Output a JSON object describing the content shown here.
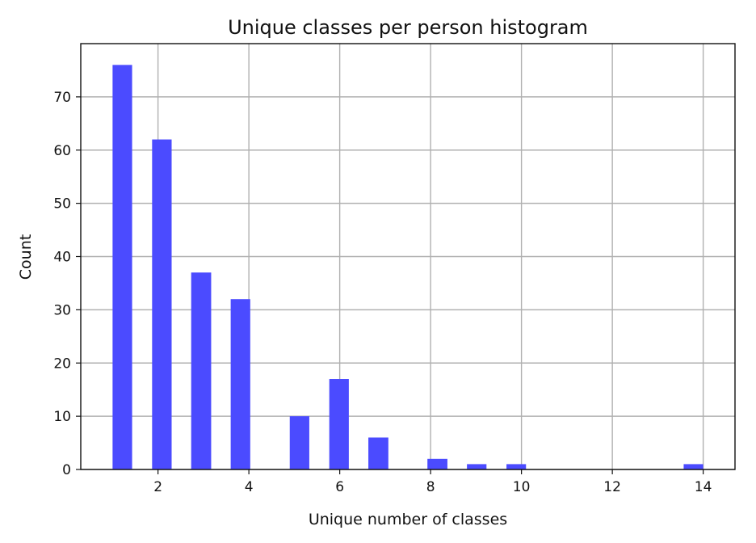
{
  "chart_data": {
    "type": "bar",
    "title": "Unique classes per person histogram",
    "xlabel": "Unique number of classes",
    "ylabel": "Count",
    "xlim": [
      0.3,
      14.7
    ],
    "ylim": [
      0,
      80
    ],
    "xticks": [
      2,
      4,
      6,
      8,
      10,
      12,
      14
    ],
    "yticks": [
      0,
      10,
      20,
      30,
      40,
      50,
      60,
      70
    ],
    "grid": true,
    "bar_color": "#4b4bff",
    "bins": [
      {
        "x_start": 1.0,
        "x_end": 1.43,
        "count": 76
      },
      {
        "x_start": 1.87,
        "x_end": 2.3,
        "count": 62
      },
      {
        "x_start": 2.73,
        "x_end": 3.17,
        "count": 37
      },
      {
        "x_start": 3.6,
        "x_end": 4.03,
        "count": 32
      },
      {
        "x_start": 4.9,
        "x_end": 5.33,
        "count": 10
      },
      {
        "x_start": 5.77,
        "x_end": 6.2,
        "count": 17
      },
      {
        "x_start": 6.63,
        "x_end": 7.07,
        "count": 6
      },
      {
        "x_start": 7.93,
        "x_end": 8.37,
        "count": 2
      },
      {
        "x_start": 8.8,
        "x_end": 9.23,
        "count": 1
      },
      {
        "x_start": 9.67,
        "x_end": 10.1,
        "count": 1
      },
      {
        "x_start": 13.57,
        "x_end": 14.0,
        "count": 1
      }
    ]
  }
}
